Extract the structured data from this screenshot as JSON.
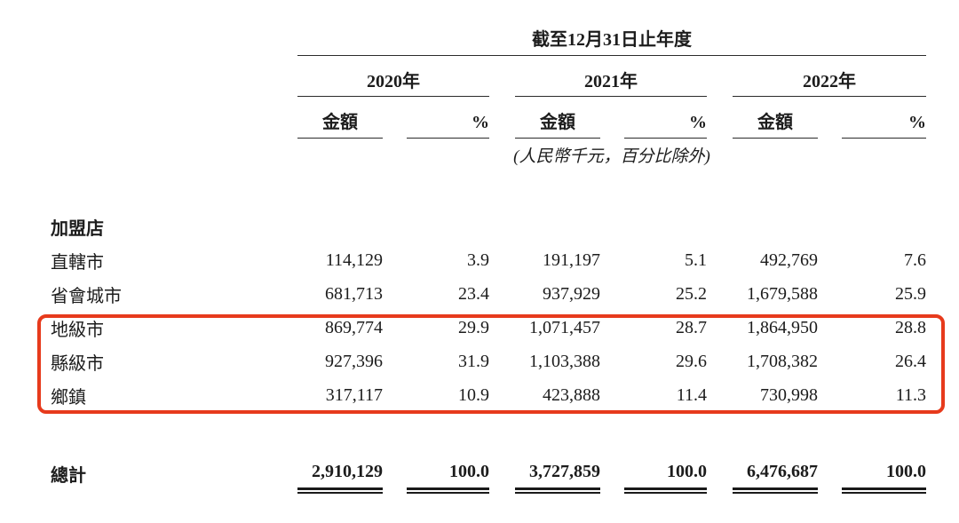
{
  "table": {
    "period_header": "截至12月31日止年度",
    "unit_note": "(人民幣千元，百分比除外)",
    "years": [
      "2020年",
      "2021年",
      "2022年"
    ],
    "col_headers": {
      "amount": "金額",
      "pct": "%"
    },
    "section_label": "加盟店",
    "rows": [
      {
        "label": "直轄市",
        "highlighted": false,
        "values": [
          "114,129",
          "3.9",
          "191,197",
          "5.1",
          "492,769",
          "7.6"
        ]
      },
      {
        "label": "省會城市",
        "highlighted": false,
        "values": [
          "681,713",
          "23.4",
          "937,929",
          "25.2",
          "1,679,588",
          "25.9"
        ]
      },
      {
        "label": "地級市",
        "highlighted": true,
        "values": [
          "869,774",
          "29.9",
          "1,071,457",
          "28.7",
          "1,864,950",
          "28.8"
        ]
      },
      {
        "label": "縣級市",
        "highlighted": true,
        "values": [
          "927,396",
          "31.9",
          "1,103,388",
          "29.6",
          "1,708,382",
          "26.4"
        ]
      },
      {
        "label": "鄉鎮",
        "highlighted": true,
        "values": [
          "317,117",
          "10.9",
          "423,888",
          "11.4",
          "730,998",
          "11.3"
        ]
      }
    ],
    "total": {
      "label": "總計",
      "values": [
        "2,910,129",
        "100.0",
        "3,727,859",
        "100.0",
        "6,476,687",
        "100.0"
      ]
    },
    "highlight_color": "#e73a1c"
  }
}
